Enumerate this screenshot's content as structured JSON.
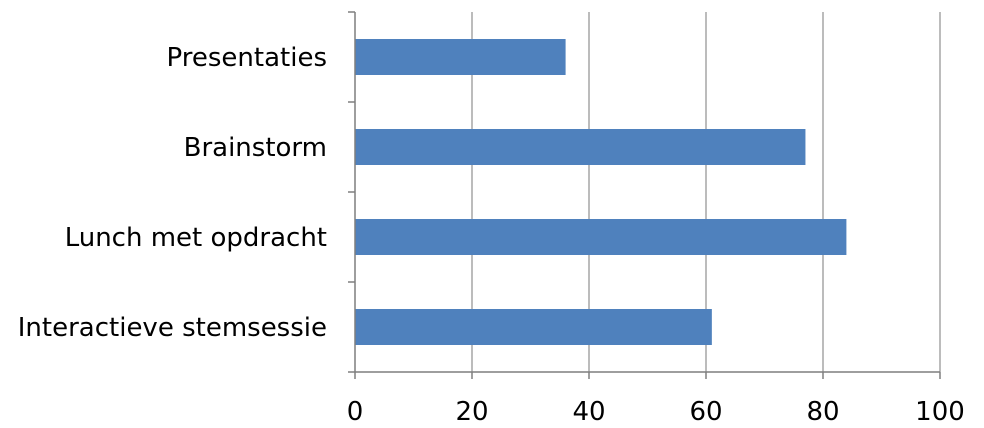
{
  "chart_data": {
    "type": "bar",
    "orientation": "horizontal",
    "categories": [
      "Presentaties",
      "Brainstorm",
      "Lunch met opdracht",
      "Interactieve stemsessie"
    ],
    "values": [
      36,
      77,
      84,
      61
    ],
    "title": "",
    "xlabel": "",
    "ylabel": "",
    "xlim": [
      0,
      100
    ],
    "xticks": [
      0,
      20,
      40,
      60,
      80,
      100
    ],
    "grid": "vertical",
    "legend": "none",
    "bar_color": "#4f81bd"
  }
}
